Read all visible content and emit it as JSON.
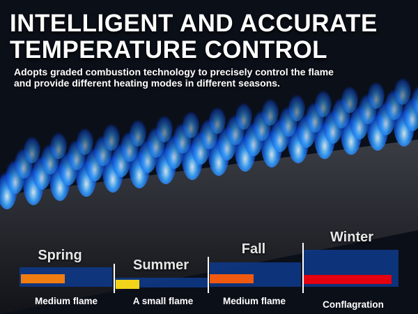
{
  "header": {
    "title_lines": [
      "INTELLIGENT AND ACCURATE",
      "TEMPERATURE CONTROL"
    ],
    "subtitle_lines": [
      "Adopts graded combustion technology to precisely control the flame",
      "and provide different heating modes in different seasons."
    ]
  },
  "seasons": [
    {
      "name": "Spring",
      "flame": "Medium flame"
    },
    {
      "name": "Summer",
      "flame": "A small flame"
    },
    {
      "name": "Fall",
      "flame": "Medium flame"
    },
    {
      "name": "Winter",
      "flame": "Conflagration"
    }
  ]
}
